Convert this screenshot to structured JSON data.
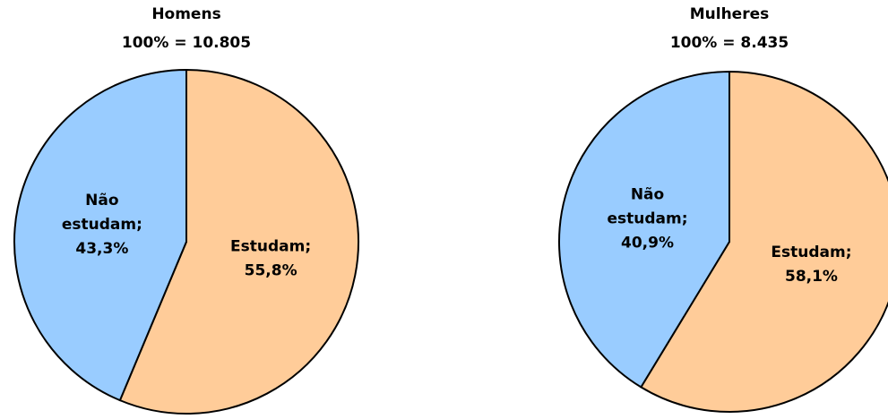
{
  "chart_data": [
    {
      "type": "pie",
      "title": "Homens",
      "subtitle": "100% = 10.805",
      "categories": [
        "Estudam;",
        "Não estudam;"
      ],
      "values": [
        55.8,
        43.3
      ],
      "value_labels": [
        "55,8%",
        "43,3%"
      ],
      "colors": [
        "#FFCC99",
        "#99CCFF"
      ]
    },
    {
      "type": "pie",
      "title": "Mulheres",
      "subtitle": "100% = 8.435",
      "categories": [
        "Estudam;",
        "Não estudam;"
      ],
      "values": [
        58.1,
        40.9
      ],
      "value_labels": [
        "58,1%",
        "40,9%"
      ],
      "colors": [
        "#FFCC99",
        "#99CCFF"
      ]
    }
  ]
}
